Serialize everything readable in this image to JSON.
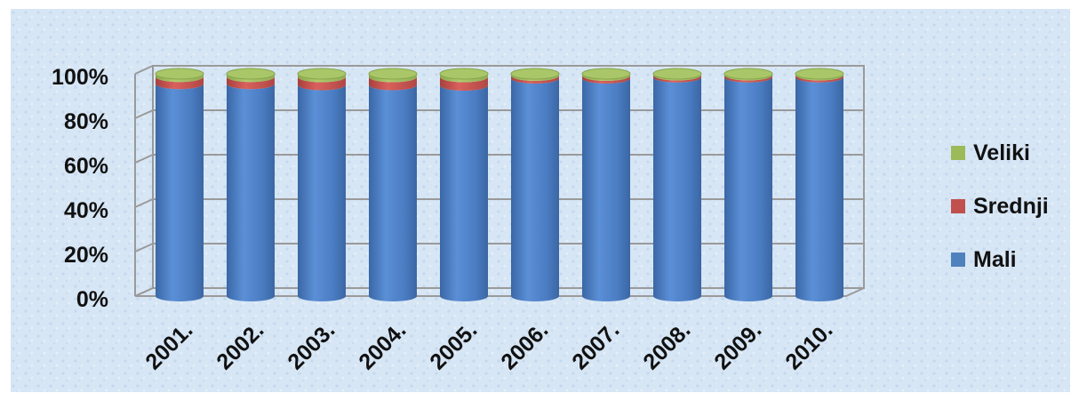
{
  "chart_data": {
    "type": "bar",
    "stacked": true,
    "style": "3d-cylinder",
    "categories": [
      "2001.",
      "2002.",
      "2003.",
      "2004.",
      "2005.",
      "2006.",
      "2007.",
      "2008.",
      "2009.",
      "2010."
    ],
    "series": [
      {
        "name": "Mali",
        "color": "#4f81bd",
        "values": [
          95.5,
          95.5,
          95.0,
          95.0,
          94.8,
          98.0,
          98.0,
          98.5,
          98.5,
          98.5
        ]
      },
      {
        "name": "Srednji",
        "color": "#c0504d",
        "values": [
          3.2,
          3.2,
          3.6,
          3.6,
          3.8,
          1.2,
          1.2,
          0.9,
          0.9,
          0.9
        ]
      },
      {
        "name": "Veliki",
        "color": "#9bbb59",
        "values": [
          1.3,
          1.3,
          1.4,
          1.4,
          1.4,
          0.8,
          0.8,
          0.6,
          0.6,
          0.6
        ]
      }
    ],
    "yticks": [
      "0%",
      "20%",
      "40%",
      "60%",
      "80%",
      "100%"
    ],
    "ylim": [
      0,
      100
    ],
    "grid": true,
    "legend_position": "right",
    "title": "",
    "xlabel": "",
    "ylabel": ""
  }
}
